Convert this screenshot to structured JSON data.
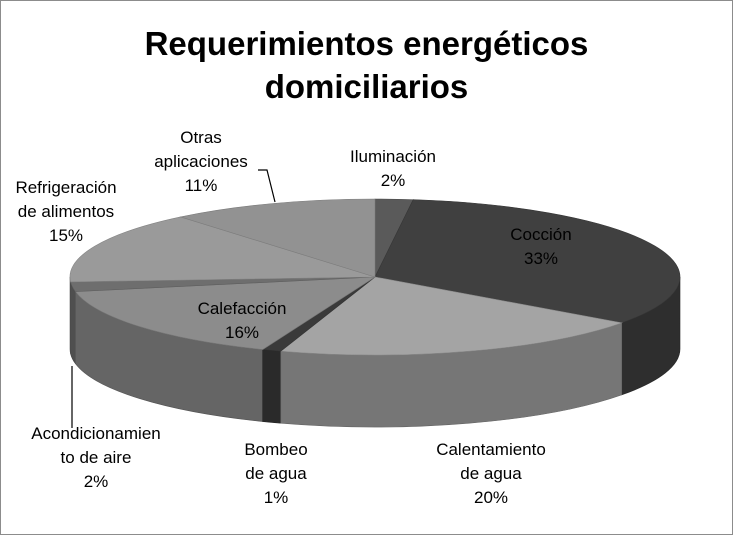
{
  "chart_data": {
    "type": "pie",
    "title": "Requerimientos energéticos domiciliarios",
    "title_lines": [
      "Requerimientos energéticos",
      "domiciliarios"
    ],
    "slices": [
      {
        "label": "Iluminación",
        "label_lines": [
          "Iluminación"
        ],
        "value": 2,
        "value_label": "2%",
        "color": "#5a5a5a"
      },
      {
        "label": "Cocción",
        "label_lines": [
          "Cocción"
        ],
        "value": 33,
        "value_label": "33%",
        "color": "#404040"
      },
      {
        "label": "Calentamiento de agua",
        "label_lines": [
          "Calentamiento",
          "de agua"
        ],
        "value": 20,
        "value_label": "20%",
        "color": "#a4a4a4"
      },
      {
        "label": "Bombeo de agua",
        "label_lines": [
          "Bombeo",
          "de agua"
        ],
        "value": 1,
        "value_label": "1%",
        "color": "#3a3a3a"
      },
      {
        "label": "Calefacción",
        "label_lines": [
          "Calefacción"
        ],
        "value": 16,
        "value_label": "16%",
        "color": "#8c8c8c"
      },
      {
        "label": "Acondicionamiento de aire",
        "label_lines": [
          "Acondicionamien",
          "to de aire"
        ],
        "value": 2,
        "value_label": "2%",
        "color": "#6e6e6e"
      },
      {
        "label": "Refrigeración de alimentos",
        "label_lines": [
          "Refrigeración",
          "de alimentos"
        ],
        "value": 15,
        "value_label": "15%",
        "color": "#9a9a9a"
      },
      {
        "label": "Otras aplicaciones",
        "label_lines": [
          "Otras",
          "aplicaciones"
        ],
        "value": 11,
        "value_label": "11%",
        "color": "#929292"
      }
    ],
    "legend": "none",
    "style": "3d"
  }
}
